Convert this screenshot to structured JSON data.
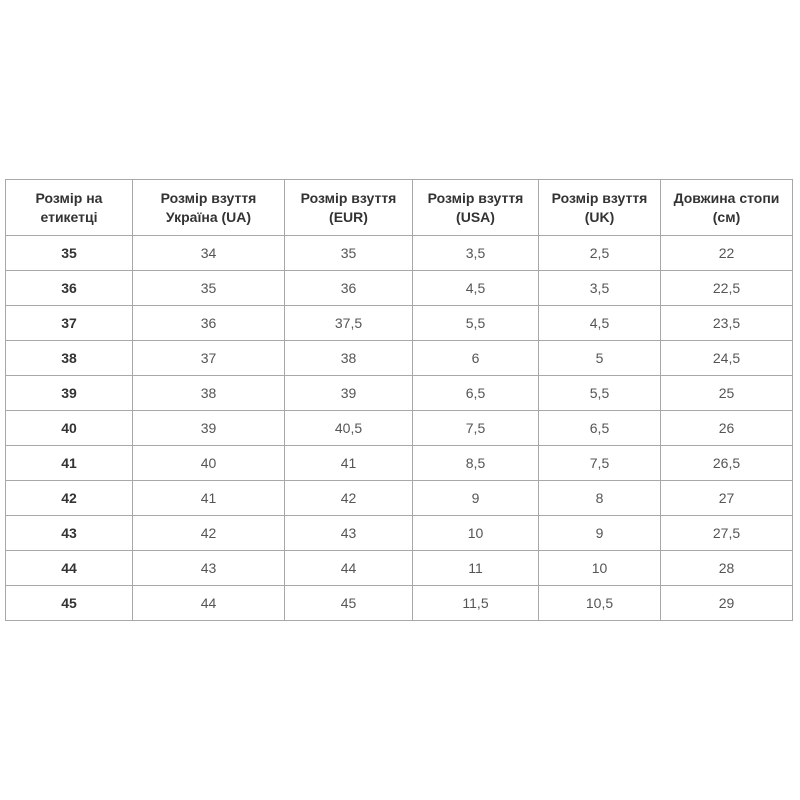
{
  "table": {
    "headers": [
      "Розмір на етикетці",
      "Розмір взуття Україна (UA)",
      "Розмір взуття (EUR)",
      "Розмір взуття (USA)",
      "Розмір взуття (UK)",
      "Довжина стопи (см)"
    ],
    "rows": [
      [
        "35",
        "34",
        "35",
        "3,5",
        "2,5",
        "22"
      ],
      [
        "36",
        "35",
        "36",
        "4,5",
        "3,5",
        "22,5"
      ],
      [
        "37",
        "36",
        "37,5",
        "5,5",
        "4,5",
        "23,5"
      ],
      [
        "38",
        "37",
        "38",
        "6",
        "5",
        "24,5"
      ],
      [
        "39",
        "38",
        "39",
        "6,5",
        "5,5",
        "25"
      ],
      [
        "40",
        "39",
        "40,5",
        "7,5",
        "6,5",
        "26"
      ],
      [
        "41",
        "40",
        "41",
        "8,5",
        "7,5",
        "26,5"
      ],
      [
        "42",
        "41",
        "42",
        "9",
        "8",
        "27"
      ],
      [
        "43",
        "42",
        "43",
        "10",
        "9",
        "27,5"
      ],
      [
        "44",
        "43",
        "44",
        "11",
        "10",
        "28"
      ],
      [
        "45",
        "44",
        "45",
        "11,5",
        "10,5",
        "29"
      ]
    ]
  }
}
